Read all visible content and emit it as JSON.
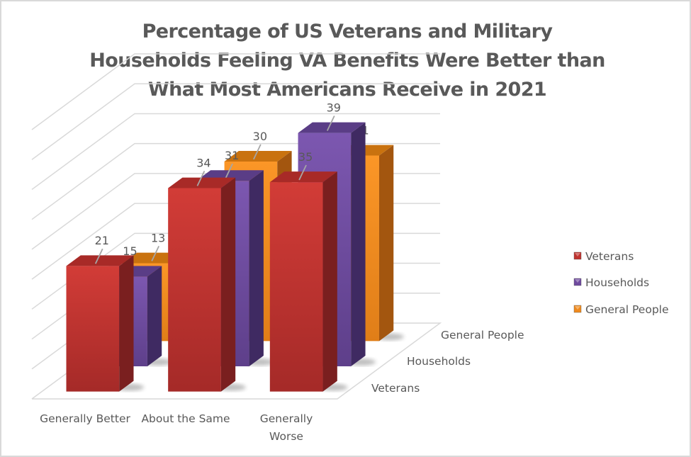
{
  "chart_data": {
    "type": "bar",
    "variant": "3d-column",
    "title": "Percentage of US Veterans and Military Households Feeling VA Benefits Were Better than What Most Americans Receive in 2021",
    "title_lines": [
      "Percentage of US Veterans and Military",
      "Households Feeling VA Benefits Were Better than",
      "What Most Americans Receive in 2021"
    ],
    "categories": [
      "Generally Better",
      "About the Same",
      "Generally Worse"
    ],
    "category_label_lines": [
      [
        "Generally Better"
      ],
      [
        "About the Same"
      ],
      [
        "Generally",
        "Worse"
      ]
    ],
    "series": [
      {
        "name": "Veterans",
        "values": [
          21,
          34,
          35
        ],
        "color": "#c0332f"
      },
      {
        "name": "Households",
        "values": [
          15,
          31,
          39
        ],
        "color": "#6f4a9e"
      },
      {
        "name": "General People",
        "values": [
          13,
          30,
          31
        ],
        "color": "#f08a1d"
      }
    ],
    "depth_axis_labels": [
      "General People",
      "Households",
      "Veterans"
    ],
    "xlabel": "",
    "ylabel": "",
    "ylim": [
      0,
      45
    ],
    "y_gridline_step": 5,
    "grid": true,
    "data_labels": true,
    "legend": {
      "position": "right",
      "entries": [
        "Veterans",
        "Households",
        "General People"
      ]
    }
  }
}
